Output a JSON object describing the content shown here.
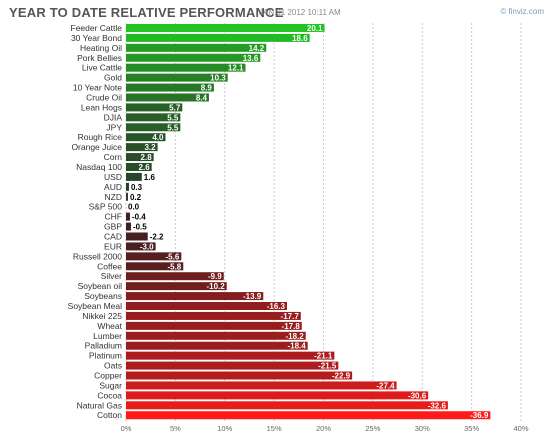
{
  "header": {
    "title": "YEAR TO DATE RELATIVE PERFORMANCE",
    "timestamp": "JAN 01 2012 10:11 AM",
    "brand": "© finviz.com"
  },
  "chart_data": {
    "type": "bar",
    "orientation": "horizontal",
    "title": "YEAR TO DATE RELATIVE PERFORMANCE",
    "xlim": [
      0,
      40
    ],
    "x_ticks": [
      "0%",
      "5%",
      "10%",
      "15%",
      "20%",
      "25%",
      "30%",
      "35%",
      "40%"
    ],
    "grid": true,
    "categories": [
      "Feeder Cattle",
      "30 Year Bond",
      "Heating Oil",
      "Pork Bellies",
      "Live Cattle",
      "Gold",
      "10 Year Note",
      "Crude Oil",
      "Lean Hogs",
      "DJIA",
      "JPY",
      "Rough Rice",
      "Orange Juice",
      "Corn",
      "Nasdaq 100",
      "USD",
      "AUD",
      "NZD",
      "S&P 500",
      "CHF",
      "GBP",
      "CAD",
      "EUR",
      "Russell 2000",
      "Coffee",
      "Silver",
      "Soybean oil",
      "Soybeans",
      "Soybean Meal",
      "Nikkei 225",
      "Wheat",
      "Lumber",
      "Palladium",
      "Platinum",
      "Oats",
      "Copper",
      "Sugar",
      "Cocoa",
      "Natural Gas",
      "Cotton"
    ],
    "values": [
      20.1,
      18.6,
      14.2,
      13.6,
      12.1,
      10.3,
      8.9,
      8.4,
      5.7,
      5.5,
      5.5,
      4.0,
      3.2,
      2.8,
      2.6,
      1.6,
      0.3,
      0.2,
      0.0,
      -0.4,
      -0.5,
      -2.2,
      -3.0,
      -5.6,
      -5.8,
      -9.9,
      -10.2,
      -13.9,
      -16.3,
      -17.7,
      -17.8,
      -18.2,
      -18.4,
      -21.1,
      -21.5,
      -22.9,
      -27.4,
      -30.6,
      -32.6,
      -36.9
    ],
    "value_labels": [
      "20.1",
      "18.6",
      "14.2",
      "13.6",
      "12.1",
      "10.3",
      "8.9",
      "8.4",
      "5.7",
      "5.5",
      "5.5",
      "4.0",
      "3.2",
      "2.8",
      "2.6",
      "1.6",
      "0.3",
      "0.2",
      "0.0",
      "-0.4",
      "-0.5",
      "-2.2",
      "-3.0",
      "-5.6",
      "-5.8",
      "-9.9",
      "-10.2",
      "-13.9",
      "-16.3",
      "-17.7",
      "-17.8",
      "-18.2",
      "-18.4",
      "-21.1",
      "-21.5",
      "-22.9",
      "-27.4",
      "-30.6",
      "-32.6",
      "-36.9"
    ],
    "colors": {
      "positive_max": "#22c322",
      "positive_min": "#2a3a2a",
      "negative_min": "#3a2020",
      "negative_max": "#ff1a1a",
      "grid": "#cccccc",
      "label_dark": "#000000",
      "label_light": "#ffffff"
    }
  }
}
